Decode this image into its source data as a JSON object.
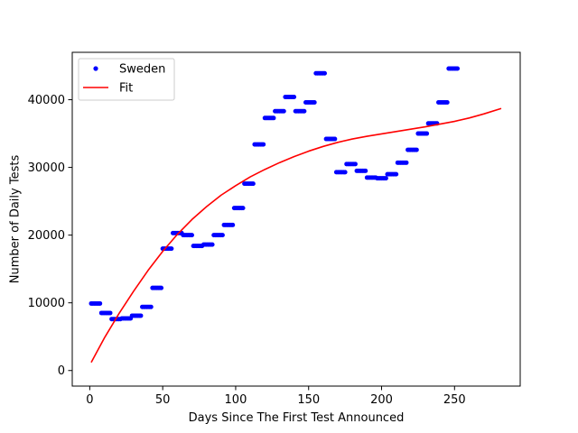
{
  "chart_data": {
    "type": "scatter",
    "xlabel": "Days Since The First Test Announced",
    "ylabel": "Number of Daily Tests",
    "xlim": [
      -12,
      295
    ],
    "ylim": [
      -2300,
      47000
    ],
    "xticks": [
      0,
      50,
      100,
      150,
      200,
      250
    ],
    "yticks": [
      0,
      10000,
      20000,
      30000,
      40000
    ],
    "legend": {
      "placement": "top-left",
      "entries": [
        "Sweden",
        "Fit"
      ]
    },
    "grid": false,
    "series": [
      {
        "name": "Sweden",
        "kind": "points",
        "color": "#0000ff",
        "segments": [
          {
            "x_start": 1,
            "x_end": 7,
            "y": 9900
          },
          {
            "x_start": 8,
            "x_end": 14,
            "y": 8500
          },
          {
            "x_start": 15,
            "x_end": 21,
            "y": 7600
          },
          {
            "x_start": 22,
            "x_end": 28,
            "y": 7700
          },
          {
            "x_start": 29,
            "x_end": 35,
            "y": 8100
          },
          {
            "x_start": 36,
            "x_end": 42,
            "y": 9400
          },
          {
            "x_start": 43,
            "x_end": 49,
            "y": 12200
          },
          {
            "x_start": 50,
            "x_end": 56,
            "y": 18000
          },
          {
            "x_start": 57,
            "x_end": 63,
            "y": 20300
          },
          {
            "x_start": 64,
            "x_end": 70,
            "y": 20000
          },
          {
            "x_start": 71,
            "x_end": 77,
            "y": 18400
          },
          {
            "x_start": 78,
            "x_end": 84,
            "y": 18600
          },
          {
            "x_start": 85,
            "x_end": 91,
            "y": 20000
          },
          {
            "x_start": 92,
            "x_end": 98,
            "y": 21500
          },
          {
            "x_start": 99,
            "x_end": 105,
            "y": 24000
          },
          {
            "x_start": 106,
            "x_end": 112,
            "y": 27600
          },
          {
            "x_start": 113,
            "x_end": 119,
            "y": 33400
          },
          {
            "x_start": 120,
            "x_end": 126,
            "y": 37300
          },
          {
            "x_start": 127,
            "x_end": 133,
            "y": 38300
          },
          {
            "x_start": 134,
            "x_end": 140,
            "y": 40400
          },
          {
            "x_start": 141,
            "x_end": 147,
            "y": 38300
          },
          {
            "x_start": 148,
            "x_end": 154,
            "y": 39600
          },
          {
            "x_start": 155,
            "x_end": 161,
            "y": 43900
          },
          {
            "x_start": 162,
            "x_end": 168,
            "y": 34200
          },
          {
            "x_start": 169,
            "x_end": 175,
            "y": 29300
          },
          {
            "x_start": 176,
            "x_end": 182,
            "y": 30500
          },
          {
            "x_start": 183,
            "x_end": 189,
            "y": 29500
          },
          {
            "x_start": 190,
            "x_end": 196,
            "y": 28500
          },
          {
            "x_start": 197,
            "x_end": 203,
            "y": 28400
          },
          {
            "x_start": 204,
            "x_end": 210,
            "y": 29000
          },
          {
            "x_start": 211,
            "x_end": 217,
            "y": 30700
          },
          {
            "x_start": 218,
            "x_end": 224,
            "y": 32600
          },
          {
            "x_start": 225,
            "x_end": 231,
            "y": 35000
          },
          {
            "x_start": 232,
            "x_end": 238,
            "y": 36500
          },
          {
            "x_start": 239,
            "x_end": 245,
            "y": 39600
          },
          {
            "x_start": 246,
            "x_end": 252,
            "y": 44600
          }
        ]
      },
      {
        "name": "Fit",
        "kind": "line",
        "color": "#ff0000",
        "x": [
          1,
          10,
          20,
          30,
          40,
          50,
          60,
          70,
          80,
          90,
          100,
          110,
          120,
          130,
          140,
          150,
          160,
          170,
          180,
          190,
          200,
          210,
          220,
          230,
          240,
          250,
          260,
          270,
          282
        ],
        "y": [
          1200,
          4800,
          8400,
          11700,
          14800,
          17600,
          20100,
          22300,
          24200,
          25900,
          27300,
          28600,
          29700,
          30700,
          31600,
          32400,
          33100,
          33700,
          34200,
          34600,
          34950,
          35300,
          35650,
          36000,
          36400,
          36800,
          37300,
          37900,
          38700
        ]
      }
    ]
  }
}
